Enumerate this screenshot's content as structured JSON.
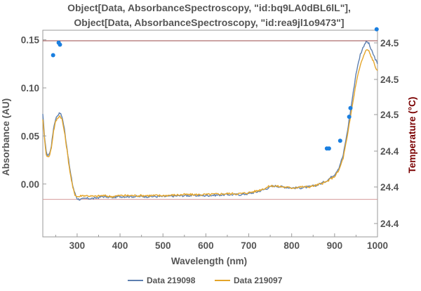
{
  "chart_data": {
    "type": "line",
    "title_lines": [
      "Object[Data, AbsorbanceSpectroscopy, \"id:bq9LA0dBL6lL\"],",
      "Object[Data, AbsorbanceSpectroscopy, \"id:rea9jl1o9473\"]"
    ],
    "xlabel": "Wavelength  (nm)",
    "ylabel": "Absorbance  (AU)",
    "y2label": "Temperature  (°C)",
    "xlim": [
      220,
      1000
    ],
    "ylim": [
      -0.055,
      0.16
    ],
    "x_ticks": [
      300,
      400,
      500,
      600,
      700,
      800,
      900,
      1000
    ],
    "y_ticks": [
      0.15,
      0.1,
      0.05,
      0.0
    ],
    "y_tick_labels": [
      "0.15",
      "0.10",
      "0.05",
      "0.00"
    ],
    "y2_tick_labels": [
      "24.5",
      "24.5",
      "24.5",
      "24.4",
      "24.4",
      "24.4"
    ],
    "series": [
      {
        "name": "Data 219098",
        "color": "#5d7fb0",
        "x": [
          220,
          224,
          228,
          232,
          236,
          240,
          245,
          250,
          255,
          260,
          265,
          270,
          275,
          280,
          285,
          290,
          295,
          300,
          305,
          310,
          320,
          340,
          360,
          380,
          400,
          450,
          500,
          550,
          600,
          650,
          680,
          700,
          720,
          740,
          750,
          760,
          780,
          800,
          820,
          840,
          860,
          880,
          900,
          910,
          920,
          930,
          940,
          950,
          960,
          970,
          975,
          980,
          985,
          990,
          995,
          1000
        ],
        "y": [
          0.072,
          0.05,
          0.033,
          0.03,
          0.032,
          0.04,
          0.058,
          0.068,
          0.072,
          0.074,
          0.07,
          0.058,
          0.042,
          0.025,
          0.01,
          -0.002,
          -0.01,
          -0.015,
          -0.016,
          -0.016,
          -0.015,
          -0.015,
          -0.013,
          -0.014,
          -0.013,
          -0.013,
          -0.013,
          -0.012,
          -0.012,
          -0.011,
          -0.011,
          -0.01,
          -0.008,
          -0.005,
          -0.003,
          -0.002,
          -0.003,
          -0.004,
          -0.004,
          -0.003,
          -0.001,
          0.003,
          0.01,
          0.017,
          0.03,
          0.055,
          0.085,
          0.115,
          0.135,
          0.146,
          0.148,
          0.146,
          0.14,
          0.135,
          0.13,
          0.125
        ]
      },
      {
        "name": "Data 219097",
        "color": "#e4a52a",
        "x": [
          220,
          224,
          228,
          232,
          236,
          240,
          245,
          250,
          255,
          260,
          265,
          270,
          275,
          280,
          285,
          290,
          295,
          300,
          305,
          310,
          320,
          340,
          360,
          380,
          400,
          450,
          500,
          550,
          600,
          650,
          680,
          700,
          720,
          740,
          750,
          760,
          780,
          800,
          820,
          840,
          860,
          880,
          900,
          910,
          920,
          930,
          940,
          950,
          960,
          970,
          975,
          980,
          985,
          990,
          995,
          1000
        ],
        "y": [
          0.068,
          0.047,
          0.031,
          0.028,
          0.03,
          0.038,
          0.055,
          0.065,
          0.069,
          0.071,
          0.067,
          0.055,
          0.04,
          0.023,
          0.008,
          -0.004,
          -0.011,
          -0.013,
          -0.013,
          -0.012,
          -0.012,
          -0.013,
          -0.012,
          -0.013,
          -0.012,
          -0.012,
          -0.012,
          -0.011,
          -0.011,
          -0.01,
          -0.01,
          -0.009,
          -0.007,
          -0.004,
          -0.002,
          -0.002,
          -0.003,
          -0.004,
          -0.003,
          -0.003,
          -0.001,
          0.002,
          0.008,
          0.014,
          0.027,
          0.05,
          0.078,
          0.105,
          0.124,
          0.136,
          0.14,
          0.138,
          0.133,
          0.128,
          0.122,
          0.118
        ]
      }
    ],
    "temperature_points": {
      "color": "#1a7fe0",
      "x": [
        244,
        257,
        260,
        882,
        887,
        913,
        934,
        937,
        998
      ],
      "y": [
        0.134,
        0.147,
        0.145,
        0.037,
        0.037,
        0.045,
        0.07,
        0.079,
        0.161
      ]
    },
    "reference_lines": [
      {
        "y": 0.149,
        "color": "#9a4a4a"
      },
      {
        "y": -0.016,
        "color": "#d49a9a"
      }
    ],
    "legend_position": "bottom-center",
    "grid": false
  }
}
